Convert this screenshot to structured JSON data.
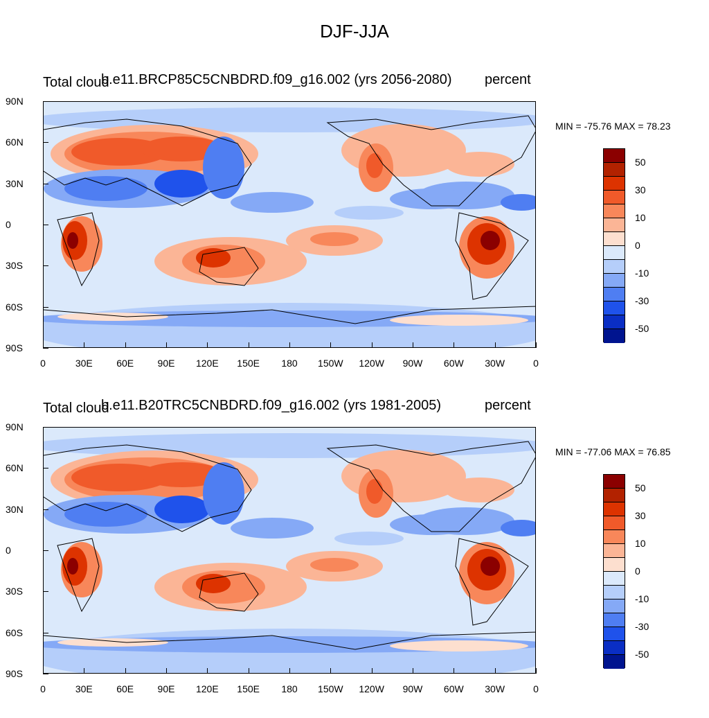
{
  "title": "DJF-JJA",
  "panels": [
    {
      "left_label": "Total cloud",
      "center_label": "b.e11.BRCP85C5CNBDRD.f09_g16.002 (yrs 2056-2080)",
      "right_label": "percent",
      "minmax": "MIN = -75.76 MAX =  78.23"
    },
    {
      "left_label": "Total cloud",
      "center_label": "b.e11.B20TRC5CNBDRD.f09_g16.002 (yrs 1981-2005)",
      "right_label": "percent",
      "minmax": "MIN = -77.06 MAX =  76.85"
    }
  ],
  "y_axis": [
    "90N",
    "60N",
    "30N",
    "0",
    "30S",
    "60S",
    "90S"
  ],
  "x_axis": [
    "0",
    "30E",
    "60E",
    "90E",
    "120E",
    "150E",
    "180",
    "150W",
    "120W",
    "90W",
    "60W",
    "30W",
    "0"
  ],
  "colorbar": {
    "labels": [
      "50",
      "30",
      "10",
      "0",
      "-10",
      "-30",
      "-50"
    ],
    "colors": [
      "#8b0000",
      "#b22200",
      "#dd3300",
      "#f05a2a",
      "#f8875a",
      "#fbb596",
      "#fddfcf",
      "#dbe9fb",
      "#b5cefa",
      "#85a9f6",
      "#4f7ef2",
      "#1f52eb",
      "#0a2ec4",
      "#00148f"
    ]
  },
  "palette": {
    "ocean_base": "#dbe9fb",
    "light_blue": "#b5cefa",
    "mid_blue": "#85a9f6",
    "blue": "#4f7ef2",
    "deep_blue": "#1f52eb",
    "light_red": "#fddfcf",
    "salmon": "#fbb596",
    "orange": "#f8875a",
    "red_orange": "#f05a2a",
    "red": "#dd3300",
    "dark_red": "#8b0000"
  }
}
